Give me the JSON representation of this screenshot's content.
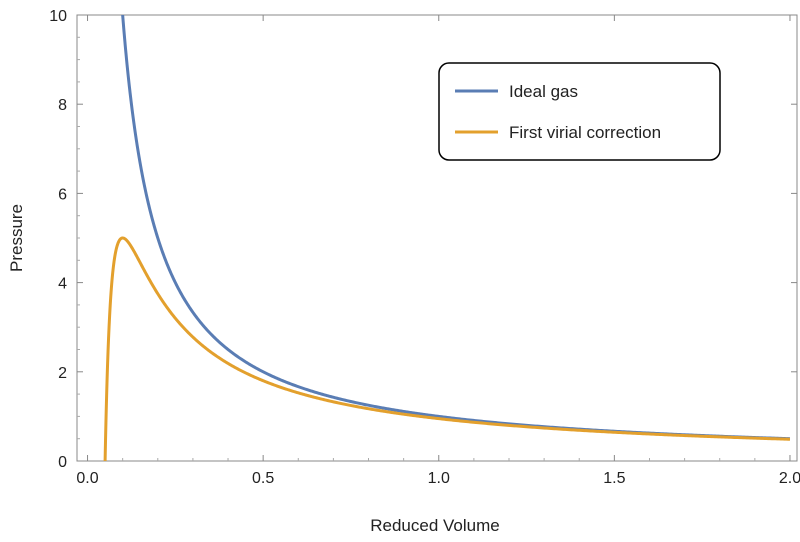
{
  "chart_data": {
    "type": "line",
    "title": "",
    "xlabel": "Reduced Volume",
    "ylabel": "Pressure",
    "xlim": [
      -0.03,
      2.02
    ],
    "ylim": [
      0,
      10
    ],
    "xticks": [
      "0.0",
      "0.5",
      "1.0",
      "1.5",
      "2.0"
    ],
    "yticks": [
      "0",
      "2",
      "4",
      "6",
      "8",
      "10"
    ],
    "grid": false,
    "legend_position": "top-right",
    "series": [
      {
        "name": "Ideal gas",
        "color": "#5a7db4",
        "formula": "P = 1/V",
        "x": [
          0.1,
          0.15,
          0.2,
          0.25,
          0.3,
          0.4,
          0.5,
          0.6,
          0.8,
          1.0,
          1.25,
          1.5,
          1.75,
          2.0
        ],
        "y": [
          10.0,
          6.67,
          5.0,
          4.0,
          3.33,
          2.5,
          2.0,
          1.67,
          1.25,
          1.0,
          0.8,
          0.67,
          0.57,
          0.5
        ]
      },
      {
        "name": "First virial correction",
        "color": "#e3a02d",
        "formula": "P = 1/V - 0.05/V^2",
        "x": [
          0.05,
          0.1,
          0.15,
          0.2,
          0.25,
          0.3,
          0.4,
          0.5,
          0.6,
          0.8,
          1.0,
          1.25,
          1.5,
          1.75,
          2.0
        ],
        "y": [
          0.0,
          5.0,
          4.44,
          3.75,
          3.2,
          2.78,
          2.19,
          1.8,
          1.53,
          1.17,
          0.95,
          0.77,
          0.64,
          0.555,
          0.4875
        ]
      }
    ]
  }
}
